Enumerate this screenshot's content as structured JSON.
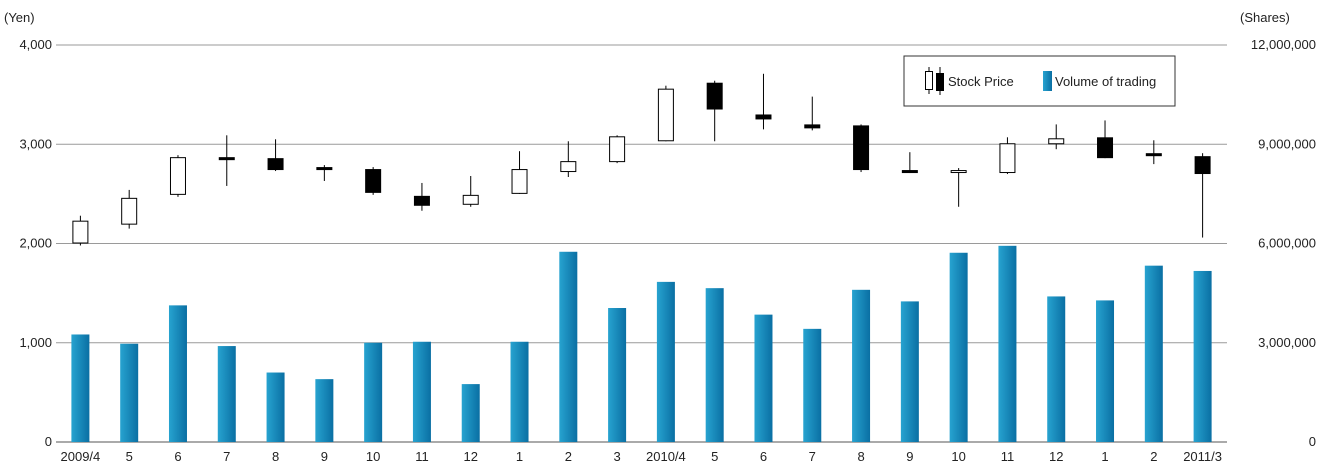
{
  "chart_data": {
    "type": "candlestick+bar",
    "categories": [
      "2009/4",
      "5",
      "6",
      "7",
      "8",
      "9",
      "10",
      "11",
      "12",
      "1",
      "2",
      "3",
      "2010/4",
      "5",
      "6",
      "7",
      "8",
      "9",
      "10",
      "11",
      "12",
      "1",
      "2",
      "2011/3"
    ],
    "y_left": {
      "unit_label": "(Yen)",
      "ylim": [
        0,
        4000
      ],
      "ticks": [
        0,
        1000,
        2000,
        3000,
        4000
      ],
      "tick_labels": [
        "0",
        "1,000",
        "2,000",
        "3,000",
        "4,000"
      ]
    },
    "y_right": {
      "unit_label": "(Shares)",
      "ylim": [
        0,
        12000000
      ],
      "ticks": [
        0,
        3000000,
        6000000,
        9000000,
        12000000
      ],
      "tick_labels": [
        "0",
        "3,000,000",
        "6,000,000",
        "9,000,000",
        "12,000,000"
      ]
    },
    "grid": true,
    "legend_position": "top-right",
    "legend": {
      "stock_price": "Stock Price",
      "volume": "Volume of trading"
    },
    "stock_price": [
      {
        "open": 2000,
        "high": 2280,
        "low": 1980,
        "close": 2230
      },
      {
        "open": 2190,
        "high": 2540,
        "low": 2150,
        "close": 2460
      },
      {
        "open": 2490,
        "high": 2890,
        "low": 2470,
        "close": 2870
      },
      {
        "open": 2870,
        "high": 3090,
        "low": 2580,
        "close": 2850
      },
      {
        "open": 2860,
        "high": 3050,
        "low": 2730,
        "close": 2740
      },
      {
        "open": 2770,
        "high": 2790,
        "low": 2630,
        "close": 2740
      },
      {
        "open": 2750,
        "high": 2770,
        "low": 2490,
        "close": 2510
      },
      {
        "open": 2480,
        "high": 2610,
        "low": 2330,
        "close": 2380
      },
      {
        "open": 2390,
        "high": 2680,
        "low": 2370,
        "close": 2490
      },
      {
        "open": 2500,
        "high": 2930,
        "low": 2500,
        "close": 2750
      },
      {
        "open": 2720,
        "high": 3030,
        "low": 2670,
        "close": 2830
      },
      {
        "open": 2820,
        "high": 3090,
        "low": 2810,
        "close": 3080
      },
      {
        "open": 3030,
        "high": 3590,
        "low": 3030,
        "close": 3560
      },
      {
        "open": 3620,
        "high": 3640,
        "low": 3030,
        "close": 3350
      },
      {
        "open": 3300,
        "high": 3710,
        "low": 3150,
        "close": 3250
      },
      {
        "open": 3200,
        "high": 3480,
        "low": 3140,
        "close": 3160
      },
      {
        "open": 3190,
        "high": 3200,
        "low": 2720,
        "close": 2740
      },
      {
        "open": 2740,
        "high": 2920,
        "low": 2710,
        "close": 2720
      },
      {
        "open": 2710,
        "high": 2760,
        "low": 2370,
        "close": 2740
      },
      {
        "open": 2710,
        "high": 3070,
        "low": 2700,
        "close": 3010
      },
      {
        "open": 3000,
        "high": 3200,
        "low": 2950,
        "close": 3060
      },
      {
        "open": 3070,
        "high": 3240,
        "low": 2860,
        "close": 2860
      },
      {
        "open": 2910,
        "high": 3040,
        "low": 2800,
        "close": 2880
      },
      {
        "open": 2880,
        "high": 2910,
        "low": 2060,
        "close": 2700
      }
    ],
    "volume": [
      3250000,
      2970000,
      4130000,
      2900000,
      2100000,
      1900000,
      3000000,
      3030000,
      1750000,
      3030000,
      5750000,
      4050000,
      4840000,
      4650000,
      3850000,
      3420000,
      4600000,
      4250000,
      5720000,
      5930000,
      4400000,
      4280000,
      5330000,
      5170000
    ],
    "colors": {
      "volume_top": "#27a3d0",
      "volume_bottom": "#0a6fa3",
      "rising_body": "#ffffff",
      "falling_body": "#000000",
      "gridline": "#9a9a9a"
    }
  }
}
